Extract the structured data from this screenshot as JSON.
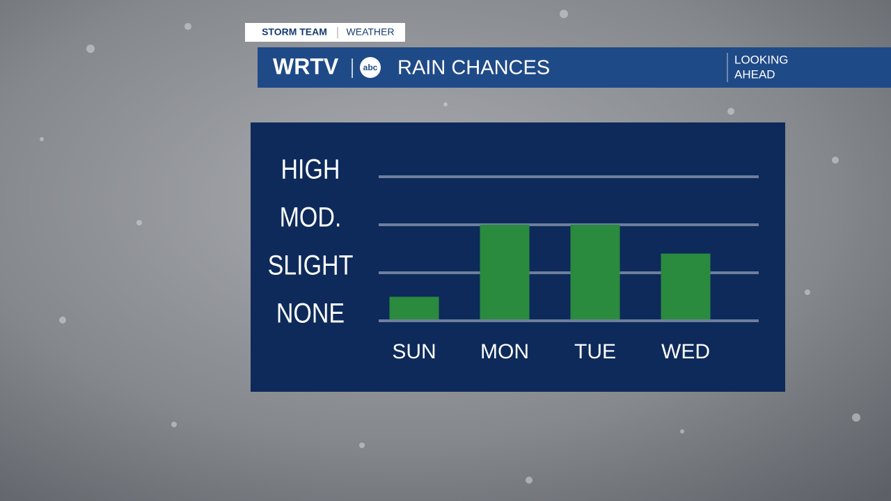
{
  "header": {
    "brand": "STORM TEAM",
    "section": "WEATHER",
    "station": "WRTV",
    "network": "abc",
    "tag_lines": [
      "LOOKING",
      "AHEAD"
    ]
  },
  "chart_data": {
    "type": "bar",
    "title": "RAIN CHANCES",
    "categories": [
      "SUN",
      "MON",
      "TUE",
      "WED"
    ],
    "values": [
      0.5,
      2,
      2,
      1.4
    ],
    "color": "#2a8a3e",
    "ylim": [
      0,
      3
    ],
    "yticks": [
      {
        "value": 0,
        "label": "NONE"
      },
      {
        "value": 1,
        "label": "SLIGHT"
      },
      {
        "value": 2,
        "label": "MOD."
      },
      {
        "value": 3,
        "label": "HIGH"
      }
    ],
    "grid": true
  }
}
